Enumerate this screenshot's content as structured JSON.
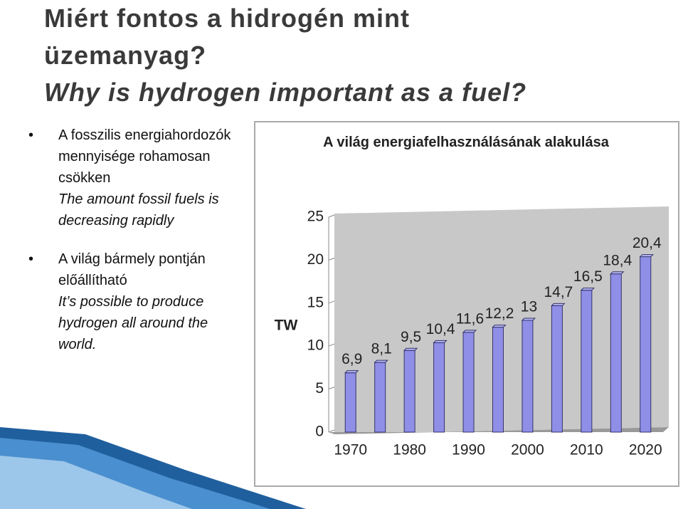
{
  "title": [
    "Miért fontos a hidrogén mint",
    "üzemanyag?",
    "Why is hydrogen important as a fuel?"
  ],
  "bullets": [
    {
      "text": "A fosszilis energiahordozók mennyisége rohamosan csökken",
      "translation": "The amount  fossil  fuels is decreasing rapidly"
    },
    {
      "text": "A  világ bármely pontján előállítható",
      "translation": "It’s possible to produce hydrogen all around the world."
    }
  ],
  "chart_data": {
    "type": "bar",
    "title": "A világ energiafelhasználásának alakulása",
    "y_label": "TW",
    "categories": [
      "1970",
      null,
      "1980",
      null,
      "1990",
      null,
      "2000",
      null,
      "2010",
      null,
      "2020"
    ],
    "values": [
      6.9,
      8.1,
      9.5,
      10.4,
      11.6,
      12.2,
      13,
      14.7,
      16.5,
      18.4,
      20.4
    ],
    "value_labels": [
      "6,9",
      "8,1",
      "9,5",
      "10,4",
      "11,6",
      "12,2",
      "13",
      "14,7",
      "16,5",
      "18,4",
      "20,4"
    ],
    "color": "#8f8fe8",
    "ylim": [
      0,
      25
    ],
    "yticks": [
      0,
      5,
      10,
      15,
      20,
      25
    ],
    "grid": true
  }
}
